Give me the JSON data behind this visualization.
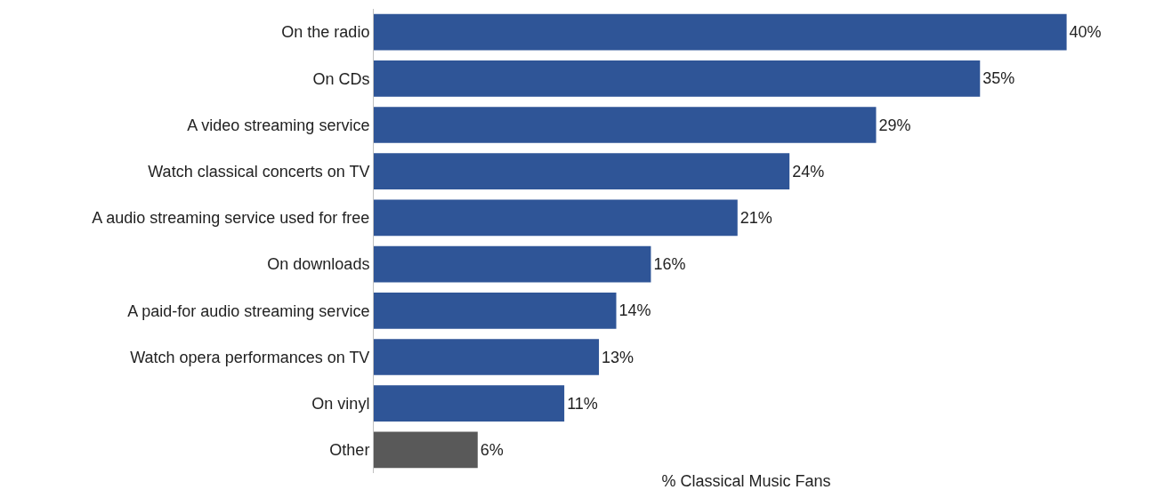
{
  "chart_data": {
    "type": "bar",
    "orientation": "horizontal",
    "xlabel": "% Classical Music Fans",
    "categories": [
      "On the radio",
      "On CDs",
      "A video streaming service",
      "Watch classical concerts on TV",
      "A audio streaming service used for free",
      "On downloads",
      "A paid-for audio streaming service",
      "Watch opera performances on TV",
      "On vinyl",
      "Other"
    ],
    "values": [
      40,
      35,
      29,
      24,
      21,
      16,
      14,
      13,
      11,
      6
    ],
    "value_labels": [
      "40%",
      "35%",
      "29%",
      "24%",
      "21%",
      "16%",
      "14%",
      "13%",
      "11%",
      "6%"
    ],
    "colors": [
      "#2f5597",
      "#2f5597",
      "#2f5597",
      "#2f5597",
      "#2f5597",
      "#2f5597",
      "#2f5597",
      "#2f5597",
      "#2f5597",
      "#595959"
    ],
    "grid": false
  }
}
